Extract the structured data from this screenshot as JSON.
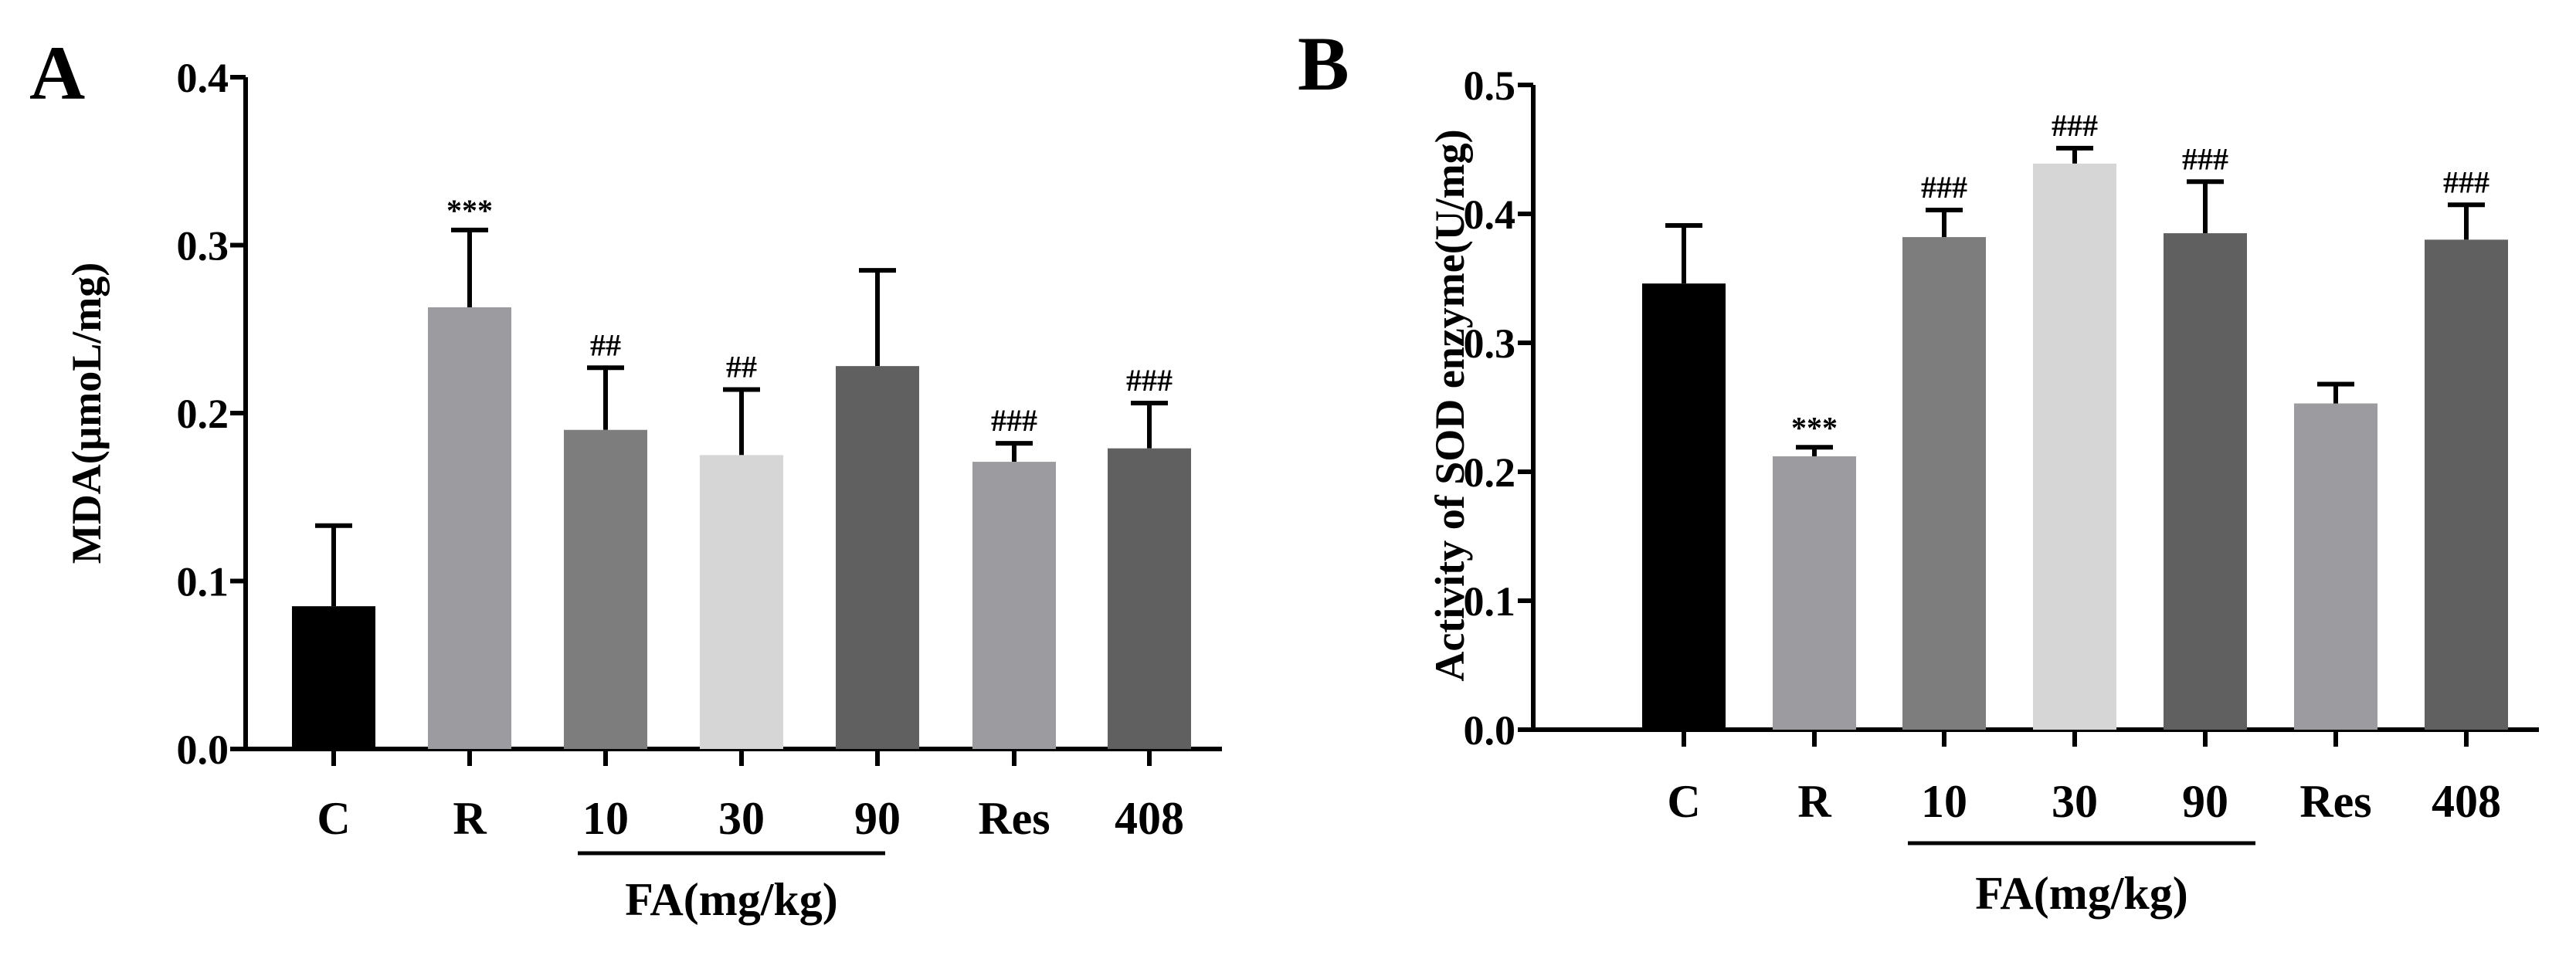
{
  "colors": {
    "background": "#ffffff",
    "axis": "#000000",
    "bar_black": "#000000",
    "bar_mid_gray": "#9c9ca0",
    "bar_gray": "#7d7d7d",
    "bar_light": "#d6d6d6",
    "bar_dark": "#606060"
  },
  "chart_data": [
    {
      "panel": "A",
      "type": "bar",
      "ylabel": "MDA(μmoL/mg)",
      "xlabel": "",
      "ylim": [
        0,
        0.4
      ],
      "yticks": [
        0.0,
        0.1,
        0.2,
        0.3,
        0.4
      ],
      "ytick_labels": [
        "0.0",
        "0.1",
        "0.2",
        "0.3",
        "0.4"
      ],
      "categories": [
        "C",
        "R",
        "10",
        "30",
        "90",
        "Res",
        "408"
      ],
      "values": [
        0.085,
        0.263,
        0.19,
        0.175,
        0.228,
        0.171,
        0.179
      ],
      "errors": [
        0.048,
        0.046,
        0.037,
        0.039,
        0.057,
        0.011,
        0.027
      ],
      "annotations": [
        "",
        "***",
        "##",
        "##",
        "",
        "###",
        "###"
      ],
      "bar_colors": [
        "#000000",
        "#9c9ca0",
        "#7d7d7d",
        "#d6d6d6",
        "#606060",
        "#9c9ca0",
        "#606060"
      ],
      "group_label": "FA(mg/kg)",
      "group_span": [
        2,
        4
      ]
    },
    {
      "panel": "B",
      "type": "bar",
      "ylabel": "Activity of SOD enzyme(U/mg)",
      "xlabel": "",
      "ylim": [
        0,
        0.5
      ],
      "yticks": [
        0.0,
        0.1,
        0.2,
        0.3,
        0.4,
        0.5
      ],
      "ytick_labels": [
        "0.0",
        "0.1",
        "0.2",
        "0.3",
        "0.4",
        "0.5"
      ],
      "categories": [
        "C",
        "R",
        "10",
        "30",
        "90",
        "Res",
        "408"
      ],
      "values": [
        0.346,
        0.212,
        0.382,
        0.439,
        0.385,
        0.253,
        0.38
      ],
      "errors": [
        0.045,
        0.007,
        0.021,
        0.012,
        0.04,
        0.015,
        0.027
      ],
      "annotations": [
        "",
        "***",
        "###",
        "###",
        "###",
        "",
        "###"
      ],
      "bar_colors": [
        "#000000",
        "#9c9ca0",
        "#7d7d7d",
        "#d6d6d6",
        "#606060",
        "#9c9ca0",
        "#606060"
      ],
      "group_label": "FA(mg/kg)",
      "group_span": [
        2,
        4
      ]
    }
  ]
}
